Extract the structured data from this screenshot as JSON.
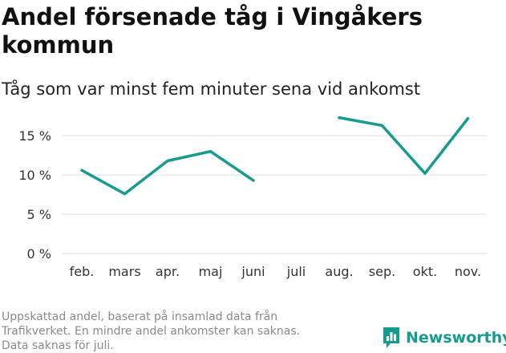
{
  "header": {
    "title": "Andel försenade tåg i Vingåkers kommun",
    "subtitle": "Tåg som var minst fem minuter sena vid ankomst"
  },
  "footer": {
    "notes": [
      "Uppskattad andel, baserat på insamlad data från",
      "Trafikverket. En mindre andel ankomster kan saknas.",
      "Data saknas för juli."
    ],
    "brand": "Newsworthy"
  },
  "colors": {
    "series": "#169c8e",
    "grid": "#dddddd",
    "brand": "#169c8e"
  },
  "chart_data": {
    "type": "line",
    "title": "Andel försenade tåg i Vingåkers kommun",
    "subtitle": "Tåg som var minst fem minuter sena vid ankomst",
    "categories": [
      "feb.",
      "mars",
      "apr.",
      "maj",
      "juni",
      "juli",
      "aug.",
      "sep.",
      "okt.",
      "nov."
    ],
    "series": [
      {
        "values": [
          10.6,
          7.6,
          11.8,
          13.0,
          9.3,
          null,
          17.3,
          16.3,
          10.2,
          17.2
        ]
      }
    ],
    "yticks": [
      0,
      5,
      10,
      15
    ],
    "ytick_labels": [
      "0 %",
      "5 %",
      "10 %",
      "15 %"
    ],
    "ylim": [
      0,
      19
    ],
    "grid": true,
    "legend": "none"
  }
}
